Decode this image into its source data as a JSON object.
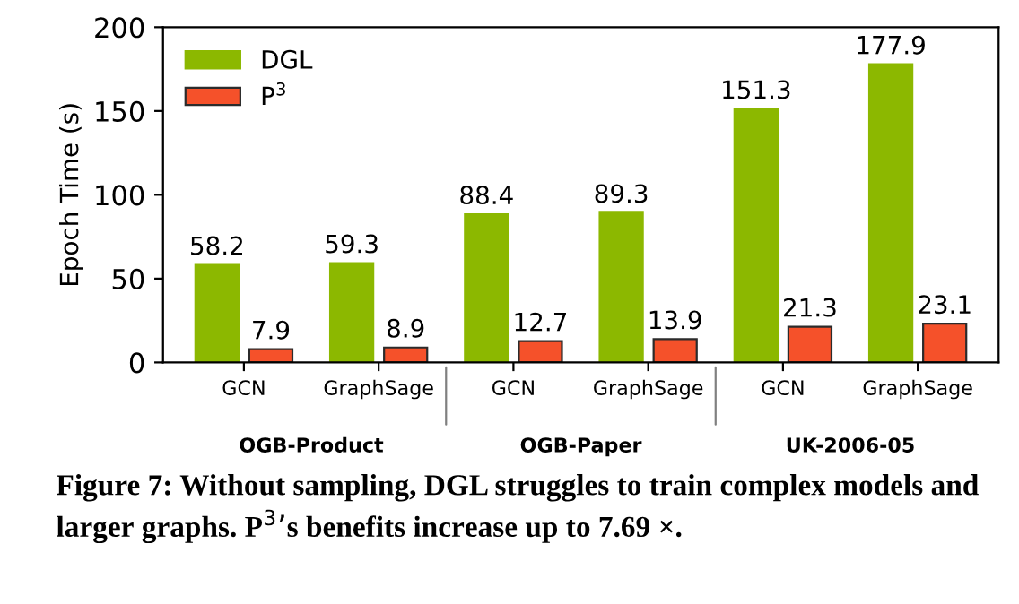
{
  "chart_data": {
    "type": "bar",
    "ylabel": "Epoch Time (s)",
    "categories": [
      "GCN",
      "GraphSage",
      "GCN",
      "GraphSage",
      "GCN",
      "GraphSage"
    ],
    "series": [
      {
        "name": "DGL",
        "color": "#8cb800",
        "values": [
          58.2,
          59.3,
          88.4,
          89.3,
          151.3,
          177.9
        ]
      },
      {
        "name": "P$^{3}$",
        "color": "#f5512a",
        "values": [
          7.9,
          8.9,
          12.7,
          13.9,
          21.3,
          23.1
        ]
      }
    ],
    "ylim": [
      0,
      200
    ],
    "yticks": [
      0,
      50,
      100,
      150,
      200
    ],
    "data_labels": true,
    "legend": "top left",
    "grid": false,
    "annotations": [
      "OGB-Product",
      "OGB-Paper",
      "UK-2006-05",
      "Figure 7: Without sampling, DGL struggles to train complex models and larger graphs. P$^{3}$’s benefits increase up to 7.69 ×."
    ]
  }
}
